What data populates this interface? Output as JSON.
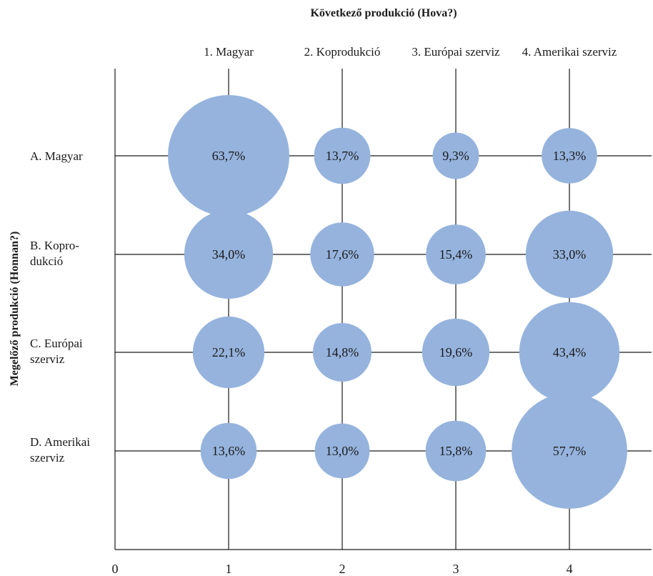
{
  "chart_data": {
    "type": "bubble",
    "title": "Következő produkció (Hova?)",
    "ylabel": "Megelőző produkció (Honnan?)",
    "columns": [
      "1. Magyar",
      "2. Koprodukció",
      "3. Európai szerviz",
      "4. Amerikai szerviz"
    ],
    "rows": [
      {
        "label": [
          "A. Magyar"
        ],
        "values": [
          63.7,
          13.7,
          9.3,
          13.3
        ],
        "labels": [
          "63,7%",
          "13,7%",
          "9,3%",
          "13,3%"
        ]
      },
      {
        "label": [
          "B. Kopro-",
          "dukció"
        ],
        "values": [
          34.0,
          17.6,
          15.4,
          33.0
        ],
        "labels": [
          "34,0%",
          "17,6%",
          "15,4%",
          "33,0%"
        ]
      },
      {
        "label": [
          "C. Európai",
          "szerviz"
        ],
        "values": [
          22.1,
          14.8,
          19.6,
          43.4
        ],
        "labels": [
          "22,1%",
          "14,8%",
          "19,6%",
          "43,4%"
        ]
      },
      {
        "label": [
          "D. Amerikai",
          "szerviz"
        ],
        "values": [
          13.6,
          13.0,
          15.8,
          57.7
        ],
        "labels": [
          "13,6%",
          "13,0%",
          "15,8%",
          "57,7%"
        ]
      }
    ],
    "x_ticks": [
      "0",
      "1",
      "2",
      "3",
      "4"
    ],
    "bubble_color": "#95b3dd",
    "grid": true
  }
}
